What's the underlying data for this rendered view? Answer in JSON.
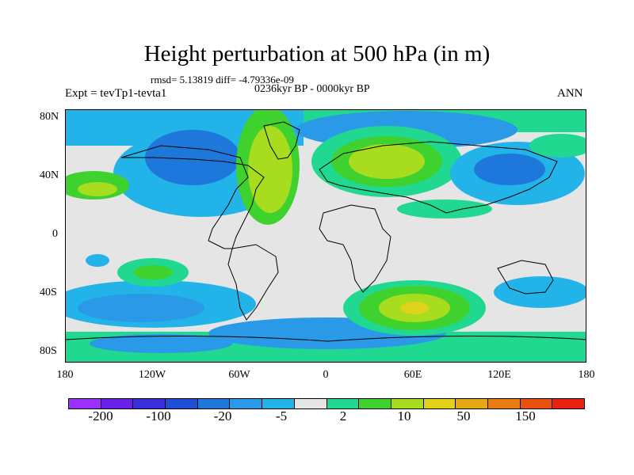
{
  "title": "Height perturbation at 500 hPa (in m)",
  "stats": "rmsd= 5.13819 diff= -4.79336e-09",
  "experiment": "Expt = tevTp1-tevta1",
  "period": "0236kyr BP - 0000kyr BP",
  "season": "ANN",
  "lat_ticks": [
    "80N",
    "40N",
    "0",
    "40S",
    "80S"
  ],
  "lon_ticks": [
    "180",
    "120W",
    "60W",
    "0",
    "60E",
    "120E",
    "180"
  ],
  "colorbar": {
    "colors": [
      "#9b30ff",
      "#6a20e8",
      "#3a2fd8",
      "#1e4fd6",
      "#1e78dc",
      "#2a9ae8",
      "#22b4e8",
      "#e5e5e5",
      "#20d890",
      "#3fd22e",
      "#a8dc1e",
      "#e0d21a",
      "#e6a814",
      "#e87c12",
      "#ea5010",
      "#e82010"
    ],
    "labels": [
      "-200",
      "-100",
      "-20",
      "-5",
      "2",
      "10",
      "50",
      "150"
    ]
  },
  "map_colors": {
    "background": "#e5e5e5",
    "cyan": "#22b4e8",
    "lightblue": "#2a9ae8",
    "blue": "#1e78dc",
    "darkblue": "#1e4fd6",
    "teal": "#20d890",
    "green": "#3fd22e",
    "lime": "#a8dc1e",
    "yellow": "#e0d21a",
    "orange": "#e6a814"
  }
}
